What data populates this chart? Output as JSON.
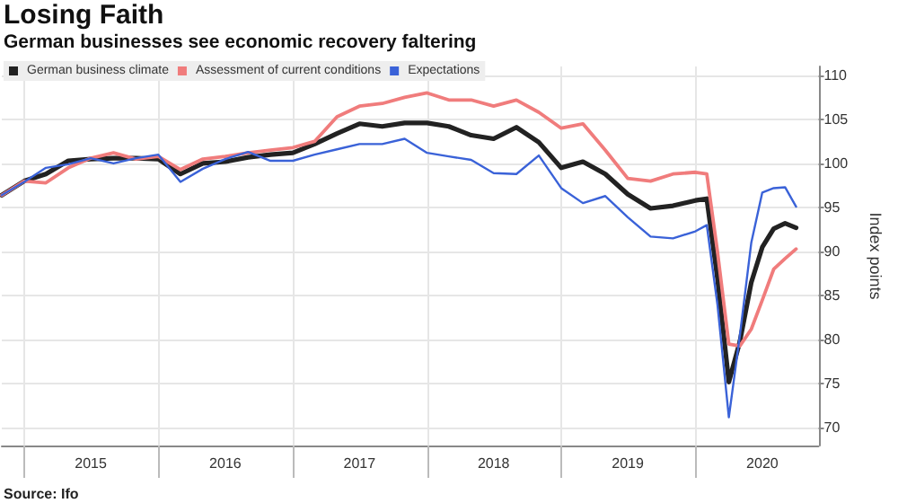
{
  "chart_data": {
    "type": "line",
    "title": "Losing Faith",
    "subtitle": "German businesses see economic recovery faltering",
    "ylabel": "Index points",
    "x": [
      "2014-11",
      "2015-01",
      "2015-03",
      "2015-05",
      "2015-07",
      "2015-09",
      "2015-11",
      "2016-01",
      "2016-03",
      "2016-05",
      "2016-07",
      "2016-09",
      "2016-11",
      "2017-01",
      "2017-03",
      "2017-05",
      "2017-07",
      "2017-09",
      "2017-11",
      "2018-01",
      "2018-03",
      "2018-05",
      "2018-07",
      "2018-09",
      "2018-11",
      "2019-01",
      "2019-03",
      "2019-05",
      "2019-07",
      "2019-09",
      "2019-11",
      "2020-01",
      "2020-02",
      "2020-03",
      "2020-04",
      "2020-05",
      "2020-06",
      "2020-07",
      "2020-08",
      "2020-09",
      "2020-10"
    ],
    "series": [
      {
        "name": "German business climate",
        "color": "#222222",
        "values": [
          96.4,
          98.0,
          98.8,
          100.3,
          100.5,
          100.6,
          100.6,
          100.5,
          98.8,
          100.0,
          100.2,
          100.7,
          101.0,
          101.2,
          102.2,
          103.4,
          104.5,
          104.2,
          104.6,
          104.6,
          104.2,
          103.2,
          102.8,
          104.1,
          102.4,
          99.5,
          100.2,
          98.8,
          96.5,
          94.9,
          95.2,
          95.8,
          96.0,
          87.0,
          75.2,
          79.8,
          86.5,
          90.5,
          92.6,
          93.2,
          92.7
        ]
      },
      {
        "name": "Assessment of current conditions",
        "color": "#f07c7c",
        "values": [
          96.4,
          98.0,
          97.8,
          99.5,
          100.6,
          101.2,
          100.5,
          100.8,
          99.3,
          100.5,
          100.8,
          101.2,
          101.5,
          101.8,
          102.5,
          105.3,
          106.5,
          106.8,
          107.5,
          108.0,
          107.2,
          107.2,
          106.5,
          107.2,
          105.8,
          104.0,
          104.5,
          101.5,
          98.3,
          98.0,
          98.8,
          99.0,
          98.8,
          90.0,
          79.5,
          79.3,
          81.2,
          84.5,
          88.0,
          89.2,
          90.3
        ]
      },
      {
        "name": "Expectations",
        "color": "#3a62d8",
        "values": [
          96.4,
          97.9,
          99.5,
          99.9,
          100.6,
          100.0,
          100.6,
          101.0,
          97.9,
          99.4,
          100.5,
          101.3,
          100.3,
          100.3,
          101.0,
          101.6,
          102.2,
          102.2,
          102.8,
          101.2,
          100.8,
          100.4,
          98.9,
          98.8,
          100.9,
          97.2,
          95.5,
          96.3,
          93.9,
          91.7,
          91.5,
          92.3,
          93.0,
          84.0,
          71.2,
          80.5,
          91.0,
          96.7,
          97.2,
          97.3,
          95.1
        ]
      }
    ],
    "xlim": [
      "2014-11",
      "2020-12"
    ],
    "xticks": [
      {
        "value": "2015-01",
        "label": null
      },
      {
        "value": "2015-07",
        "label": "2015"
      },
      {
        "value": "2016-01",
        "label": null
      },
      {
        "value": "2016-07",
        "label": "2016"
      },
      {
        "value": "2017-01",
        "label": null
      },
      {
        "value": "2017-07",
        "label": "2017"
      },
      {
        "value": "2018-01",
        "label": null
      },
      {
        "value": "2018-07",
        "label": "2018"
      },
      {
        "value": "2019-01",
        "label": null
      },
      {
        "value": "2019-07",
        "label": "2019"
      },
      {
        "value": "2020-01",
        "label": null
      },
      {
        "value": "2020-07",
        "label": "2020"
      }
    ],
    "ylim": [
      68,
      111
    ],
    "yticks": [
      70,
      75,
      80,
      85,
      90,
      95,
      100,
      105,
      110
    ],
    "grid": true,
    "legend": "top left",
    "marker": "none",
    "line_style": "solid",
    "annotations": [
      "Source: Ifo"
    ]
  }
}
